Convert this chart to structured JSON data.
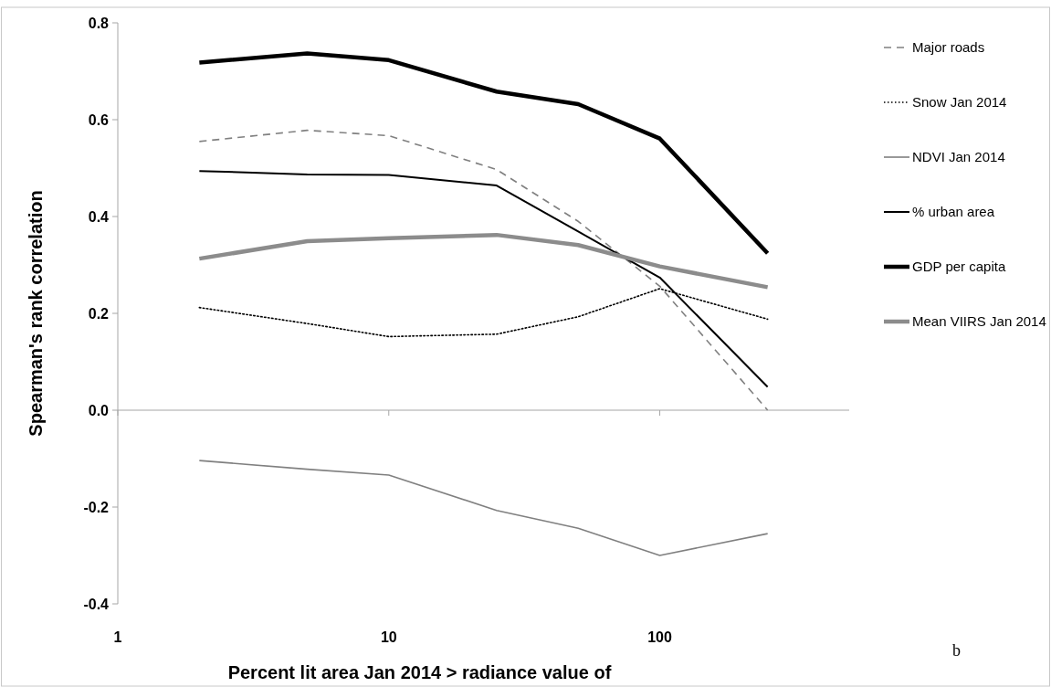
{
  "chart_data": {
    "type": "line",
    "xlabel": "Percent lit area Jan 2014 > radiance value of",
    "ylabel": "Spearman's rank correlation",
    "x": [
      2,
      5,
      10,
      25,
      50,
      100,
      250
    ],
    "log": "x",
    "xlim": [
      1,
      500
    ],
    "xticks": [
      1,
      10,
      100
    ],
    "ylim": [
      -0.4,
      0.8
    ],
    "yticks": [
      -0.4,
      -0.2,
      {
        "value": 0,
        "label": "0.0"
      },
      0.2,
      0.4,
      0.6,
      0.8
    ],
    "legend": "right",
    "annotations": [
      "b"
    ],
    "series": [
      {
        "name": "Major roads",
        "color": "#808080",
        "line_style": "dashed",
        "values": [
          0.555,
          0.578,
          0.567,
          0.497,
          0.39,
          0.256,
          0.0
        ]
      },
      {
        "name": "Snow Jan 2014",
        "color": "#000000",
        "line_style": "dotted",
        "values": [
          0.212,
          0.179,
          0.152,
          0.157,
          0.193,
          0.251,
          0.188
        ]
      },
      {
        "name": "NDVI Jan 2014",
        "color": "#808080",
        "line_style": "solid",
        "values": [
          -0.104,
          -0.122,
          -0.134,
          -0.207,
          -0.244,
          -0.3,
          -0.255
        ]
      },
      {
        "name": "% urban area",
        "color": "#000000",
        "line_style": "solid",
        "values": [
          0.494,
          0.487,
          0.486,
          0.464,
          0.369,
          0.274,
          0.048
        ]
      },
      {
        "name": "GDP per capita",
        "color": "#000000",
        "line_style": "solid",
        "values": [
          0.718,
          0.737,
          0.723,
          0.658,
          0.632,
          0.561,
          0.324
        ]
      },
      {
        "name": "Mean VIIRS Jan 2014",
        "color": "#8c8c8c",
        "line_style": "solid",
        "values": [
          0.313,
          0.349,
          0.355,
          0.362,
          0.341,
          0.297,
          0.254
        ]
      }
    ]
  }
}
